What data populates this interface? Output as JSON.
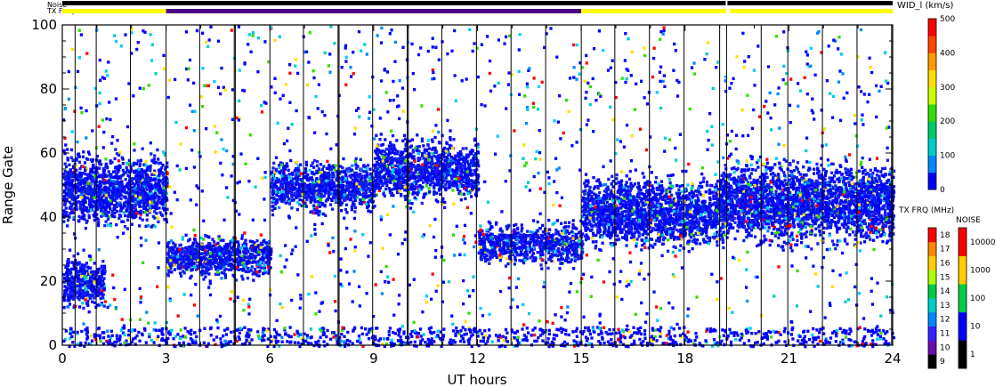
{
  "chart_data": {
    "type": "scatter",
    "xlabel": "UT hours",
    "ylabel": "Range Gate",
    "xlim": [
      0,
      24
    ],
    "ylim": [
      0,
      100
    ],
    "x_ticks": [
      "0",
      "3",
      "6",
      "9",
      "12",
      "15",
      "18",
      "21",
      "24"
    ],
    "y_ticks": [
      "0",
      "20",
      "40",
      "60",
      "80",
      "100"
    ],
    "scan_boundaries_ut": [
      0.37,
      0.98,
      1.97,
      3.0,
      3.97,
      4.97,
      5.0,
      6.0,
      6.97,
      7.97,
      8.0,
      8.97,
      9.97,
      10.0,
      10.97,
      11.97,
      12.97,
      13.97,
      15.0,
      15.97,
      16.97,
      17.97,
      19.0,
      19.2,
      20.2,
      20.97,
      21.97,
      22.97,
      23.97
    ],
    "header_bars": {
      "noise_label": "Noise",
      "txfreq_label": "TX Freq",
      "noise_color": "#000000",
      "noise_gap_ut": 19.2,
      "txfreq_segments": [
        {
          "start": 0,
          "end": 3.0,
          "color": "#ffff00"
        },
        {
          "start": 3.0,
          "end": 15.0,
          "color": "#4b0082"
        },
        {
          "start": 15.0,
          "end": 19.2,
          "color": "#ffff00"
        },
        {
          "start": 19.3,
          "end": 24,
          "color": "#ffff00"
        }
      ]
    },
    "echo_bands": [
      {
        "ut": [
          0,
          3
        ],
        "gate_center": 49,
        "gate_width": 7
      },
      {
        "ut": [
          0,
          1.2
        ],
        "gate_center": 20,
        "gate_width": 5
      },
      {
        "ut": [
          3,
          6
        ],
        "gate_center": 28,
        "gate_width": 4
      },
      {
        "ut": [
          6,
          9
        ],
        "gate_center": 50,
        "gate_width": 5
      },
      {
        "ut": [
          9,
          12
        ],
        "gate_center": 55,
        "gate_width": 6
      },
      {
        "ut": [
          12,
          15
        ],
        "gate_center": 32,
        "gate_width": 4
      },
      {
        "ut": [
          15,
          19
        ],
        "gate_center": 42,
        "gate_width": 7
      },
      {
        "ut": [
          19,
          24
        ],
        "gate_center": 45,
        "gate_width": 8
      }
    ],
    "colorbars": [
      {
        "title": "WID_l (km/s)",
        "ticks": [
          "0",
          "100",
          "200",
          "300",
          "400",
          "500"
        ],
        "colors": [
          "#0000ff",
          "#0088ff",
          "#00cccc",
          "#00cc66",
          "#33dd00",
          "#ccff00",
          "#ffdd00",
          "#ff9900",
          "#ff4400",
          "#ff0000"
        ]
      },
      {
        "title": "TX FRQ (MHz)",
        "ticks": [
          "9",
          "10",
          "11",
          "12",
          "13",
          "14",
          "15",
          "16",
          "17",
          "18"
        ],
        "colors": [
          "#000000",
          "#6a0dad",
          "#3322ff",
          "#0088ff",
          "#00cccc",
          "#00cc44",
          "#aaff00",
          "#ffcc00",
          "#ff8800",
          "#ff0000"
        ]
      },
      {
        "title": "NOISE",
        "ticks": [
          "1",
          "10",
          "100",
          "1000",
          "10000"
        ],
        "colors": [
          "#000000",
          "#0000ff",
          "#00cc44",
          "#ffcc00",
          "#ff0000"
        ]
      }
    ]
  }
}
